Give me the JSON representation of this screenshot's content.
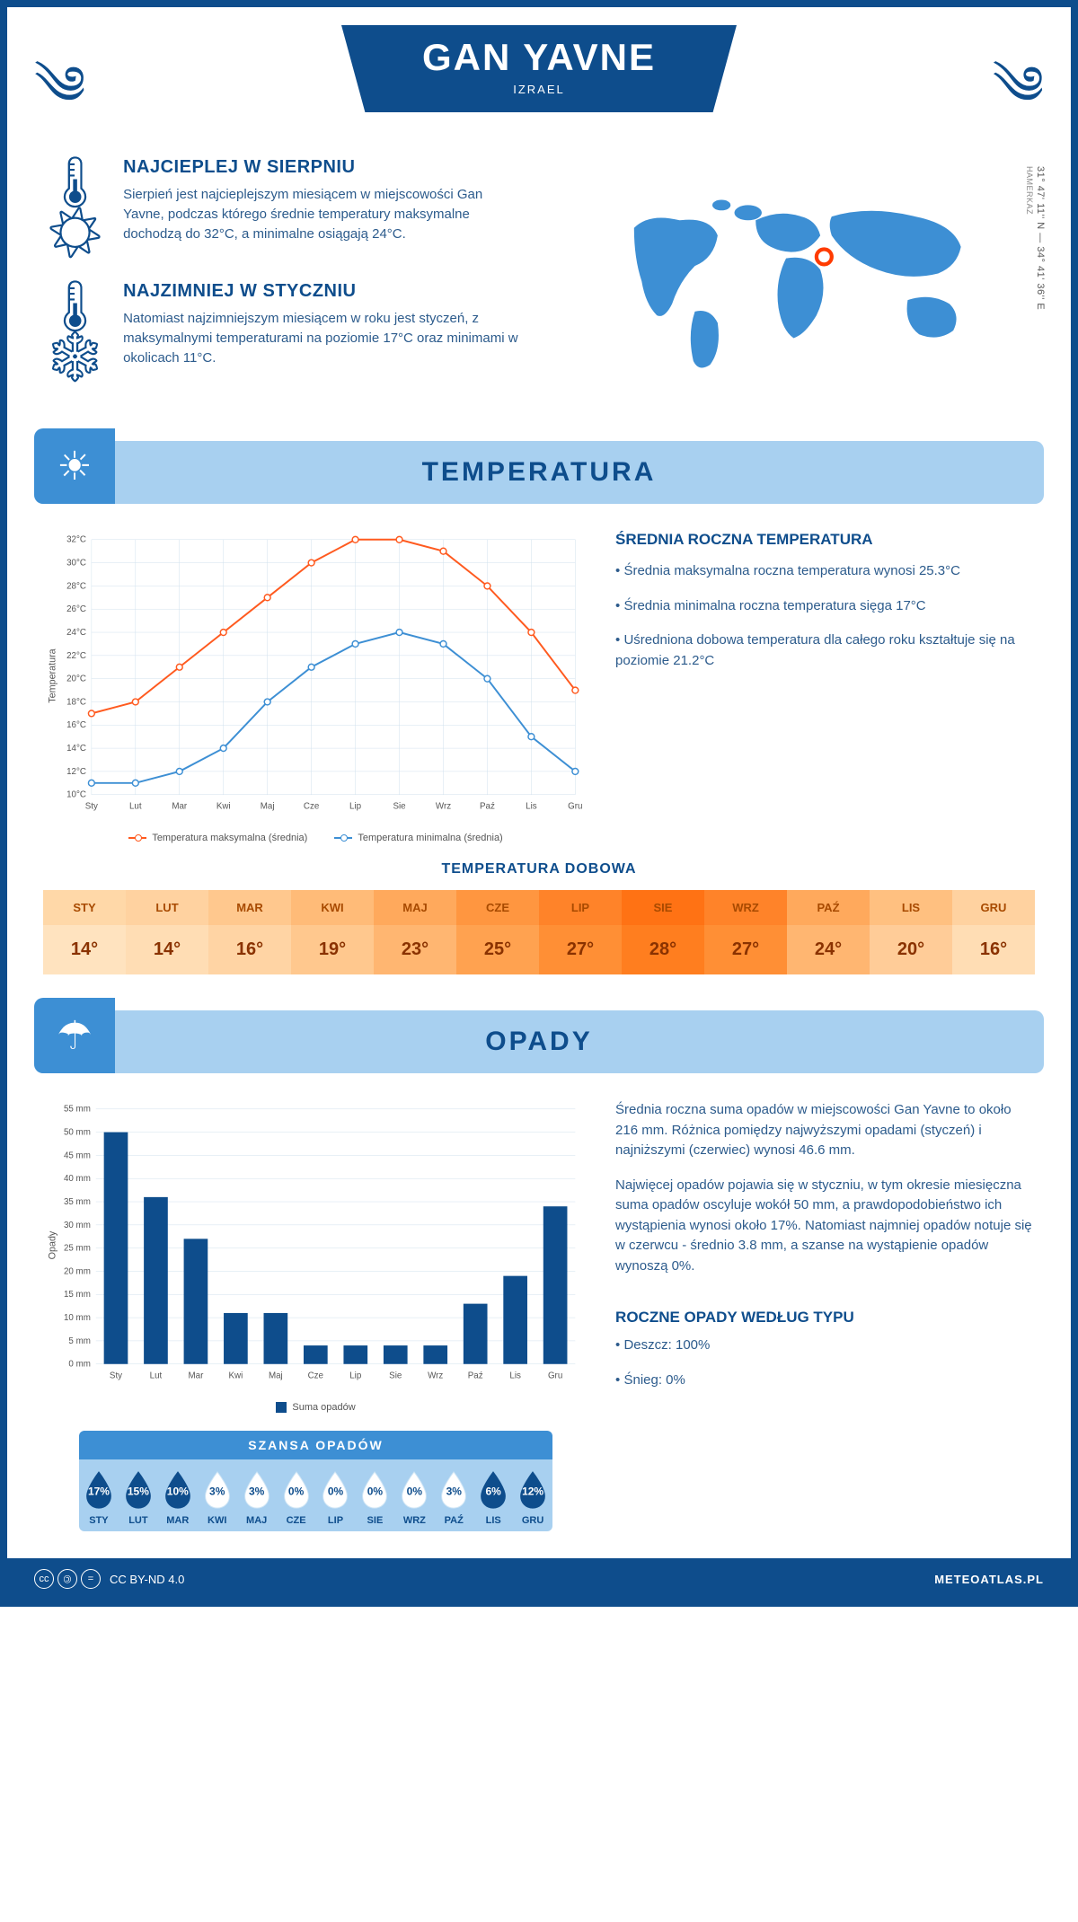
{
  "header": {
    "city": "GAN YAVNE",
    "country": "IZRAEL"
  },
  "coords": {
    "text": "31° 47' 11'' N — 34° 41' 36'' E",
    "region": "HAMERKAZ"
  },
  "summary": {
    "warmest": {
      "title": "NAJCIEPLEJ W SIERPNIU",
      "text": "Sierpień jest najcieplejszym miesiącem w miejscowości Gan Yavne, podczas którego średnie temperatury maksymalne dochodzą do 32°C, a minimalne osiągają 24°C."
    },
    "coldest": {
      "title": "NAJZIMNIEJ W STYCZNIU",
      "text": "Natomiast najzimniejszym miesiącem w roku jest styczeń, z maksymalnymi temperaturami na poziomie 17°C oraz minimami w okolicach 11°C."
    }
  },
  "sections": {
    "temperature_title": "TEMPERATURA",
    "precipitation_title": "OPADY"
  },
  "temp_chart": {
    "months": [
      "Sty",
      "Lut",
      "Mar",
      "Kwi",
      "Maj",
      "Cze",
      "Lip",
      "Sie",
      "Wrz",
      "Paź",
      "Lis",
      "Gru"
    ],
    "max_series": [
      17,
      18,
      21,
      24,
      27,
      30,
      32,
      32,
      31,
      28,
      24,
      19
    ],
    "min_series": [
      11,
      11,
      12,
      14,
      18,
      21,
      23,
      24,
      23,
      20,
      15,
      12
    ],
    "ymin": 10,
    "ymax": 32,
    "ystep": 2,
    "y_axis_title": "Temperatura",
    "max_color": "#ff5a1f",
    "min_color": "#3d8fd4",
    "grid_color": "#d0e0ee",
    "legend_max": "Temperatura maksymalna (średnia)",
    "legend_min": "Temperatura minimalna (średnia)"
  },
  "temp_side": {
    "title": "ŚREDNIA ROCZNA TEMPERATURA",
    "b1": "• Średnia maksymalna roczna temperatura wynosi 25.3°C",
    "b2": "• Średnia minimalna roczna temperatura sięga 17°C",
    "b3": "• Uśredniona dobowa temperatura dla całego roku kształtuje się na poziomie 21.2°C"
  },
  "daily_temp": {
    "title": "TEMPERATURA DOBOWA",
    "months": [
      "STY",
      "LUT",
      "MAR",
      "KWI",
      "MAJ",
      "CZE",
      "LIP",
      "SIE",
      "WRZ",
      "PAŹ",
      "LIS",
      "GRU"
    ],
    "values": [
      "14°",
      "14°",
      "16°",
      "19°",
      "23°",
      "25°",
      "27°",
      "28°",
      "27°",
      "24°",
      "20°",
      "16°"
    ],
    "header_colors": [
      "#ffd8a8",
      "#ffd2a0",
      "#ffc88e",
      "#ffbb78",
      "#ffa95c",
      "#ff9640",
      "#ff8329",
      "#ff7214",
      "#ff8329",
      "#ffa95c",
      "#ffc080",
      "#ffd2a0"
    ],
    "value_colors": [
      "#ffe3bf",
      "#ffddb4",
      "#ffd4a4",
      "#ffc88e",
      "#ffb671",
      "#ffa250",
      "#ff8f35",
      "#ff7e1f",
      "#ff8f35",
      "#ffb671",
      "#ffcc98",
      "#ffddb4"
    ]
  },
  "precip_chart": {
    "months": [
      "Sty",
      "Lut",
      "Mar",
      "Kwi",
      "Maj",
      "Cze",
      "Lip",
      "Sie",
      "Wrz",
      "Paź",
      "Lis",
      "Gru"
    ],
    "values": [
      50,
      36,
      27,
      11,
      11,
      4,
      4,
      4,
      4,
      13,
      19,
      34
    ],
    "ymin": 0,
    "ymax": 55,
    "ystep": 5,
    "y_axis_title": "Opady",
    "bar_color": "#0e4d8c",
    "grid_color": "#d0e0ee",
    "legend": "Suma opadów"
  },
  "precip_side": {
    "p1": "Średnia roczna suma opadów w miejscowości Gan Yavne to około 216 mm. Różnica pomiędzy najwyższymi opadami (styczeń) i najniższymi (czerwiec) wynosi 46.6 mm.",
    "p2": "Najwięcej opadów pojawia się w styczniu, w tym okresie miesięczna suma opadów oscyluje wokół 50 mm, a prawdopodobieństwo ich wystąpienia wynosi około 17%. Natomiast najmniej opadów notuje się w czerwcu - średnio 3.8 mm, a szanse na wystąpienie opadów wynoszą 0%."
  },
  "precip_chance": {
    "title": "SZANSA OPADÓW",
    "months": [
      "STY",
      "LUT",
      "MAR",
      "KWI",
      "MAJ",
      "CZE",
      "LIP",
      "SIE",
      "WRZ",
      "PAŹ",
      "LIS",
      "GRU"
    ],
    "values": [
      17,
      15,
      10,
      3,
      3,
      0,
      0,
      0,
      0,
      3,
      6,
      12
    ],
    "fill_color": "#0e4d8c",
    "empty_color": "#ffffff",
    "threshold": 6
  },
  "precip_type": {
    "title": "ROCZNE OPADY WEDŁUG TYPU",
    "l1": "• Deszcz: 100%",
    "l2": "• Śnieg: 0%"
  },
  "footer": {
    "license": "CC BY-ND 4.0",
    "site": "METEOATLAS.PL"
  }
}
